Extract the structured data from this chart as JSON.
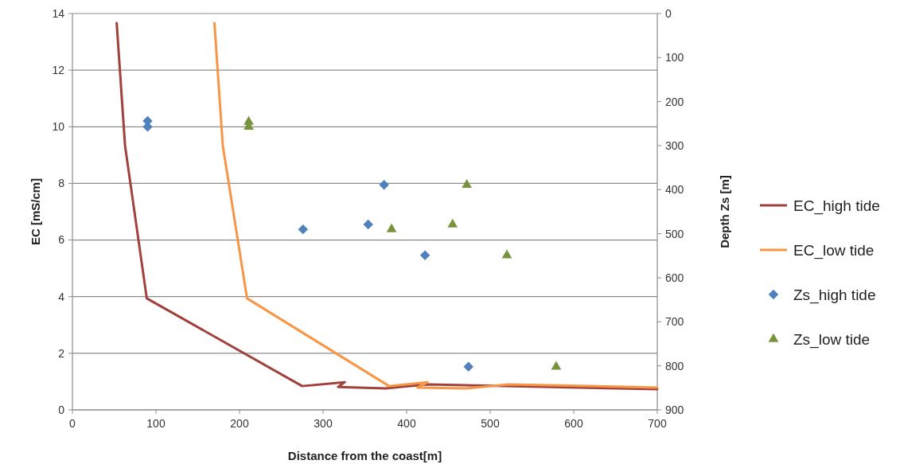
{
  "chart_data": {
    "type": "line",
    "xlabel": "Distance from the coast[m]",
    "ylabel": "EC [mS/cm]",
    "y2label": "Depth Zs [m]",
    "xlim": [
      0,
      700
    ],
    "xticks": [
      0,
      100,
      200,
      300,
      400,
      500,
      600,
      700
    ],
    "ylim": [
      0,
      14
    ],
    "yticks": [
      0,
      2,
      4,
      6,
      8,
      10,
      12,
      14
    ],
    "y2lim": [
      900,
      0
    ],
    "y2ticks": [
      900,
      800,
      700,
      600,
      500,
      400,
      300,
      200,
      100,
      0
    ],
    "grid": "y",
    "legend": "right",
    "line_style": "solid",
    "series": [
      {
        "name": "EC_high tide",
        "marker": "none",
        "color": "#a0413c",
        "x": [
          53,
          63,
          89,
          275,
          326,
          318,
          375,
          425,
          700
        ],
        "values": [
          13.66,
          9.33,
          3.94,
          0.84,
          0.98,
          0.81,
          0.76,
          0.9,
          0.73
        ]
      },
      {
        "name": "EC_low tide",
        "marker": "none",
        "color": "#f79646",
        "x": [
          170,
          180,
          209,
          379,
          425,
          413,
          472,
          522,
          700
        ],
        "values": [
          13.66,
          9.33,
          3.94,
          0.84,
          0.98,
          0.79,
          0.76,
          0.9,
          0.79
        ]
      },
      {
        "name": "Zs_high tide",
        "type": "scatter",
        "marker": "diamond",
        "axis": "y2",
        "color": "#4f81bd",
        "x": [
          90,
          90,
          276,
          354,
          373,
          422,
          474
        ],
        "values": [
          244,
          257,
          490,
          479,
          389,
          549,
          802
        ]
      },
      {
        "name": "Zs_low tide",
        "type": "scatter",
        "marker": "triangle",
        "axis": "y2",
        "color": "#77933c",
        "x": [
          211,
          211,
          382,
          455,
          472,
          520,
          579
        ],
        "values": [
          246,
          257,
          490,
          479,
          389,
          549,
          802
        ]
      }
    ]
  }
}
